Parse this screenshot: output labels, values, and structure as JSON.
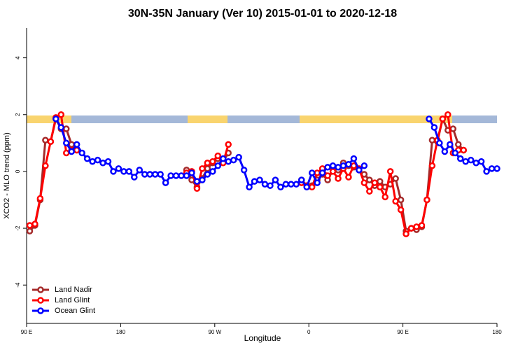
{
  "chart_data": {
    "type": "line",
    "title": "30N-35N January (Ver 10)   2015-01-01 to 2020-12-18",
    "x_label": "Longitude",
    "y_label": "XCO2 - MLO trend (ppm)",
    "xlim": [
      90,
      540
    ],
    "xticks": [
      {
        "value": 90,
        "label": "90 E"
      },
      180,
      {
        "value": 270,
        "label": "90 W"
      },
      {
        "value": 360,
        "label": "0"
      },
      {
        "value": 450,
        "label": "90 E"
      },
      {
        "value": 540,
        "label": "180"
      }
    ],
    "ylim": [
      -5.35,
      5.05
    ],
    "yticks": [
      -4,
      -2,
      0,
      2,
      4
    ],
    "legend": "bottom-left",
    "series": [
      {
        "name": "Land Nadir",
        "color": "#a52a2a",
        "x": [
          93,
          98,
          103,
          108,
          113,
          118,
          123,
          128,
          133,
          138,
          200,
          243,
          248,
          253,
          258,
          263,
          268,
          273,
          278,
          283,
          320,
          353,
          358,
          363,
          368,
          373,
          378,
          383,
          388,
          393,
          398,
          403,
          408,
          413,
          418,
          423,
          428,
          433,
          438,
          443,
          448,
          453,
          458,
          463,
          468,
          473,
          478,
          483,
          488,
          493,
          498,
          503,
          508
        ],
        "values": [
          -2.1,
          -1.9,
          -1.0,
          1.1,
          1.05,
          1.85,
          1.5,
          1.5,
          0.95,
          0.75,
          null,
          0.05,
          -0.3,
          -0.55,
          -0.25,
          0.1,
          0.3,
          0.45,
          0.35,
          0.65,
          null,
          -0.3,
          -0.5,
          -0.5,
          -0.3,
          -0.1,
          -0.3,
          0.05,
          0.05,
          0.3,
          0.2,
          0.15,
          0.05,
          -0.1,
          -0.3,
          -0.5,
          -0.35,
          -0.55,
          -0.45,
          -0.25,
          -1.0,
          -2.1,
          -2.0,
          -2.05,
          -1.95,
          -1.0,
          1.1,
          1.05,
          1.85,
          1.45,
          1.5,
          0.95,
          0.75
        ]
      },
      {
        "name": "Land Glint",
        "color": "#ff0000",
        "x": [
          93,
          98,
          103,
          108,
          113,
          118,
          123,
          128,
          133,
          138,
          200,
          243,
          248,
          253,
          258,
          263,
          268,
          273,
          278,
          283,
          320,
          353,
          358,
          363,
          368,
          373,
          378,
          383,
          388,
          393,
          398,
          403,
          408,
          413,
          418,
          423,
          428,
          433,
          438,
          443,
          448,
          453,
          458,
          463,
          468,
          473,
          478,
          483,
          488,
          493,
          498,
          503,
          508
        ],
        "values": [
          -1.9,
          -1.85,
          -0.95,
          0.2,
          1.05,
          1.9,
          2.0,
          0.65,
          0.75,
          0.75,
          null,
          -0.05,
          0.0,
          -0.6,
          0.1,
          0.3,
          0.35,
          0.55,
          0.3,
          0.95,
          null,
          -0.4,
          -0.5,
          -0.55,
          -0.05,
          0.1,
          -0.15,
          0.0,
          -0.25,
          0.1,
          -0.2,
          0.2,
          0.1,
          -0.4,
          -0.7,
          -0.4,
          -0.55,
          -0.9,
          0.0,
          -1.05,
          -1.35,
          -2.2,
          -2.0,
          -1.95,
          -1.9,
          -1.0,
          0.2,
          1.1,
          1.85,
          2.0,
          0.65,
          0.75,
          0.75
        ]
      },
      {
        "name": "Ocean Glint",
        "color": "#0000ff",
        "x": [
          118,
          123,
          128,
          133,
          138,
          143,
          148,
          153,
          158,
          163,
          168,
          173,
          178,
          183,
          188,
          193,
          198,
          203,
          208,
          213,
          218,
          223,
          228,
          233,
          238,
          243,
          248,
          253,
          258,
          263,
          268,
          273,
          278,
          283,
          288,
          293,
          298,
          303,
          308,
          313,
          318,
          323,
          328,
          333,
          338,
          343,
          348,
          353,
          358,
          363,
          368,
          373,
          378,
          383,
          388,
          393,
          398,
          403,
          408,
          413,
          445,
          475,
          480,
          485,
          490,
          495,
          500,
          505,
          510,
          515,
          520,
          525,
          530,
          535,
          540
        ],
        "values": [
          1.85,
          1.55,
          1.0,
          0.7,
          0.95,
          0.65,
          0.45,
          0.35,
          0.4,
          0.3,
          0.35,
          0.0,
          0.1,
          0.0,
          0.0,
          -0.2,
          0.05,
          -0.1,
          -0.1,
          -0.1,
          -0.1,
          -0.4,
          -0.15,
          -0.15,
          -0.15,
          -0.15,
          -0.05,
          -0.35,
          -0.3,
          -0.1,
          0.0,
          0.2,
          0.45,
          0.35,
          0.4,
          0.5,
          0.05,
          -0.55,
          -0.35,
          -0.3,
          -0.45,
          -0.5,
          -0.3,
          -0.55,
          -0.45,
          -0.45,
          -0.45,
          -0.3,
          -0.55,
          -0.05,
          -0.4,
          -0.05,
          0.15,
          0.2,
          0.15,
          0.2,
          0.25,
          0.45,
          0.05,
          0.2,
          null,
          1.85,
          1.55,
          1.0,
          0.7,
          0.95,
          0.65,
          0.45,
          0.35,
          0.4,
          0.3,
          0.35,
          0.0,
          0.1,
          0.1
        ]
      }
    ]
  }
}
